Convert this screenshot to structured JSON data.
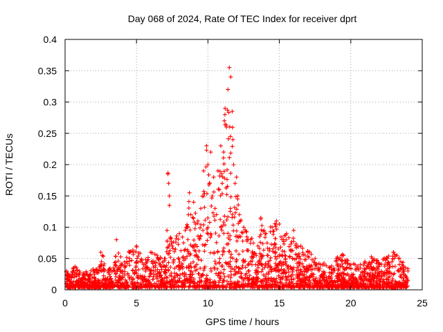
{
  "chart_data": {
    "type": "scatter",
    "title": "Day 068 of 2024, Rate Of TEC Index for receiver dprt",
    "xlabel": "GPS time / hours",
    "ylabel": "ROTI / TECUs",
    "xlim": [
      0,
      25
    ],
    "ylim": [
      0,
      0.4
    ],
    "x_ticks": [
      "0",
      "5",
      "10",
      "15",
      "20",
      "25"
    ],
    "y_ticks": [
      "0",
      "0.05",
      "0.1",
      "0.15",
      "0.2",
      "0.25",
      "0.3",
      "0.35",
      "0.4"
    ],
    "grid": true,
    "marker": "+",
    "color": "#ff0000",
    "series": [
      {
        "x": [
          0.1,
          0.3,
          0.6,
          1.0,
          1.5,
          2.0,
          2.4,
          2.5,
          3.0,
          3.5,
          3.6,
          4.0,
          4.5,
          5.0,
          5.5,
          6.0,
          6.5,
          7.0,
          7.2,
          7.25,
          7.3,
          7.5,
          8.0,
          8.5,
          8.7,
          8.8,
          9.0,
          9.3,
          9.5,
          9.7,
          9.9,
          10.0,
          10.1,
          10.2,
          10.3,
          10.4,
          10.5,
          10.6,
          10.7,
          10.8,
          10.9,
          11.0,
          11.1,
          11.15,
          11.2,
          11.3,
          11.4,
          11.5,
          11.6,
          11.7,
          11.75,
          11.8,
          11.9,
          12.0,
          12.1,
          12.2,
          12.5,
          13.0,
          13.5,
          13.7,
          14.0,
          14.5,
          14.8,
          15.0,
          15.2,
          15.5,
          16.0,
          16.5,
          17.0,
          17.5,
          18.0,
          18.5,
          19.0,
          19.5,
          20.0,
          20.5,
          21.0,
          21.5,
          22.0,
          22.5,
          23.0,
          23.5,
          24.0
        ],
        "y": [
          0.03,
          0.02,
          0.035,
          0.03,
          0.025,
          0.03,
          0.035,
          0.06,
          0.03,
          0.04,
          0.08,
          0.04,
          0.06,
          0.07,
          0.04,
          0.06,
          0.05,
          0.05,
          0.185,
          0.17,
          0.15,
          0.07,
          0.09,
          0.1,
          0.155,
          0.12,
          0.14,
          0.11,
          0.13,
          0.19,
          0.23,
          0.2,
          0.17,
          0.22,
          0.15,
          0.18,
          0.13,
          0.12,
          0.19,
          0.16,
          0.23,
          0.17,
          0.22,
          0.27,
          0.29,
          0.26,
          0.32,
          0.355,
          0.34,
          0.285,
          0.24,
          0.2,
          0.17,
          0.18,
          0.15,
          0.12,
          0.1,
          0.08,
          0.07,
          0.115,
          0.09,
          0.1,
          0.11,
          0.105,
          0.08,
          0.09,
          0.095,
          0.07,
          0.06,
          0.05,
          0.04,
          0.035,
          0.05,
          0.055,
          0.04,
          0.035,
          0.045,
          0.05,
          0.04,
          0.05,
          0.06,
          0.045,
          0.03
        ]
      }
    ]
  }
}
